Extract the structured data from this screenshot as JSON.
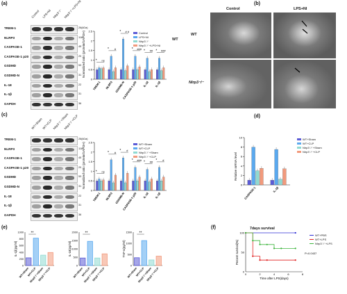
{
  "panels": {
    "a": {
      "letter": "(a)",
      "lanes": [
        "Control",
        "LPS+NI",
        "Nlrp3⁻/⁻",
        "Nlrp3⁻/⁻+LPS+NI"
      ],
      "rows": [
        {
          "name": "TREM-1",
          "kda": "26(kDa)"
        },
        {
          "name": "NLRP3",
          "kda": "118"
        },
        {
          "name": "CASPASE-1",
          "kda": "45"
        },
        {
          "name": "CASPASE-1 p20",
          "kda": "20"
        },
        {
          "name": "GSDMD",
          "kda": "53"
        },
        {
          "name": "GSDMD-N",
          "kda": "31"
        },
        {
          "name": "IL-18",
          "kda": "22"
        },
        {
          "name": "IL-1β",
          "kda": "31"
        },
        {
          "name": "GAPDH",
          "kda": "36"
        }
      ],
      "legend": [
        "Control",
        "LPS+NI",
        "Nlrp3⁻/⁻",
        "Nlrp3⁻/⁻+LPS+NI"
      ],
      "ylabel": "Normalized ratio (protein/GAPDH)",
      "sig": [
        "ns",
        "#",
        "# #",
        "###",
        "##",
        "###"
      ]
    },
    "b": {
      "letter": "(b)",
      "col_labels": [
        "Control",
        "LPS+NI"
      ],
      "row_labels": [
        "WT",
        "Nlrp3⁻/⁻"
      ]
    },
    "c": {
      "letter": "(c)",
      "lanes": [
        "WT+Sham",
        "WT+CLP",
        "Nlrp3⁻/⁻+Sham",
        "Nlrp3⁻/⁻+CLP"
      ],
      "rows": [
        {
          "name": "TREM-1",
          "kda": "26(kDa)"
        },
        {
          "name": "NLRP3",
          "kda": "118"
        },
        {
          "name": "CASPASE-1",
          "kda": "45"
        },
        {
          "name": "CASPASE-1 p20",
          "kda": "20"
        },
        {
          "name": "GSDMD",
          "kda": "53"
        },
        {
          "name": "GSDMD-N",
          "kda": "31"
        },
        {
          "name": "IL-18",
          "kda": "22"
        },
        {
          "name": "IL-1β",
          "kda": "31"
        },
        {
          "name": "GAPDH",
          "kda": "36"
        }
      ],
      "legend": [
        "WT+Sham",
        "WT+CLP",
        "Nlrp3⁻/⁻+Sham",
        "Nlrp3⁻/⁻+CLP"
      ],
      "ylabel": "Normalized ratio (protein/GAPDH)",
      "sig": [
        "ns",
        "#",
        "#",
        "###",
        "##",
        "#"
      ]
    },
    "d": {
      "letter": "(d)",
      "ylabel": "Relative mRNA level",
      "legend": [
        "WT+Sham",
        "WT+CLP",
        "Nlrp3⁻/⁻+Sham",
        "Nlrp3⁻/⁻+CLP"
      ]
    },
    "e": {
      "letter": "(e)"
    },
    "f": {
      "letter": "(f)",
      "title": "7days survival",
      "ylabel": "Percent survival(%)",
      "xlabel": "Time after LPS(days)",
      "legend": [
        "WT+PBS",
        "WT+LPS",
        "Nlrp3⁻/⁻+LPS"
      ],
      "pvalue": "P=0.0437"
    }
  },
  "colors": {
    "c1": "#5b5bd6",
    "c2": "#5aa9ef",
    "c3": "#8fdad1",
    "c4": "#f29a7c"
  },
  "chart_data": [
    {
      "type": "bar",
      "title": "",
      "ylabel": "Normalized ratio (protein/GAPDH)",
      "categories": [
        "TREM-1",
        "NLRP3",
        "GSDMD-N",
        "CASPASE-1 p20",
        "IL-18",
        "IL-1β"
      ],
      "ylim": [
        0,
        2.5
      ],
      "yticks": [
        0,
        0.5,
        1.0,
        1.5,
        2.0,
        2.5
      ],
      "series": [
        {
          "name": "Control",
          "values": [
            0.5,
            0.5,
            0.5,
            0.5,
            0.5,
            0.5
          ]
        },
        {
          "name": "LPS+NI",
          "values": [
            0.6,
            1.2,
            2.1,
            1.2,
            1.1,
            1.1
          ]
        },
        {
          "name": "Nlrp3⁻/⁻",
          "values": [
            0.55,
            0.4,
            0.45,
            0.5,
            0.4,
            0.45
          ]
        },
        {
          "name": "Nlrp3⁻/⁻+LPS+NI",
          "values": [
            0.6,
            0.6,
            0.7,
            0.65,
            0.5,
            0.6
          ]
        }
      ]
    },
    {
      "type": "bar",
      "title": "",
      "ylabel": "Normalized ratio (protein/GAPDH)",
      "categories": [
        "TREM-1",
        "NLRP3",
        "GSDMD-N",
        "CASPASE-1 p20",
        "IL-18",
        "IL-1β"
      ],
      "ylim": [
        0,
        2.5
      ],
      "yticks": [
        0,
        0.5,
        1.0,
        1.5,
        2.0,
        2.5
      ],
      "series": [
        {
          "name": "WT+Sham",
          "values": [
            0.5,
            0.5,
            0.5,
            0.5,
            0.5,
            0.5
          ]
        },
        {
          "name": "WT+CLP",
          "values": [
            0.6,
            1.6,
            1.7,
            1.2,
            1.1,
            1.2
          ]
        },
        {
          "name": "Nlrp3⁻/⁻+Sham",
          "values": [
            0.5,
            0.4,
            0.4,
            0.5,
            0.45,
            0.5
          ]
        },
        {
          "name": "Nlrp3⁻/⁻+CLP",
          "values": [
            0.55,
            0.8,
            0.9,
            0.7,
            0.6,
            0.7
          ]
        }
      ]
    },
    {
      "type": "bar",
      "title": "",
      "ylabel": "Relative mRNA level",
      "categories": [
        "CASPASE-1",
        "IL-1β"
      ],
      "ylim": [
        0,
        10
      ],
      "yticks": [
        0,
        2,
        4,
        6,
        8,
        10
      ],
      "series": [
        {
          "name": "WT+Sham",
          "values": [
            1.0,
            1.0
          ]
        },
        {
          "name": "WT+CLP",
          "values": [
            8.0,
            7.5
          ]
        },
        {
          "name": "Nlrp3⁻/⁻+Sham",
          "values": [
            3.0,
            1.2
          ]
        },
        {
          "name": "Nlrp3⁻/⁻+CLP",
          "values": [
            3.5,
            3.4
          ]
        }
      ]
    },
    {
      "type": "bar",
      "ylabel": "IL-1β(pg/ml)",
      "categories": [
        "WT+Sham",
        "WT+CLP",
        "Nlrp3⁻/⁻+Sham",
        "Nlrp3⁻/⁻+CLP"
      ],
      "ylim": [
        0,
        1000
      ],
      "yticks": [
        0,
        200,
        400,
        600,
        800,
        1000
      ],
      "values": [
        230,
        820,
        310,
        390
      ]
    },
    {
      "type": "bar",
      "ylabel": "IL-18(pg/ml)",
      "categories": [
        "WT+Sham",
        "WT+CLP",
        "Nlrp3⁻/⁻+Sham",
        "Nlrp3⁻/⁻+CLP"
      ],
      "ylim": [
        0,
        2000
      ],
      "yticks": [
        0,
        500,
        1000,
        1500,
        2000
      ],
      "values": [
        450,
        1450,
        450,
        700
      ]
    },
    {
      "type": "bar",
      "ylabel": "TNF-α(pg/ml)",
      "categories": [
        "WT+Sham",
        "WT+CLP",
        "Nlrp3⁻/⁻+Sham",
        "Nlrp3⁻/⁻+CLP"
      ],
      "ylim": [
        0,
        1500
      ],
      "yticks": [
        0,
        500,
        1000,
        1500
      ],
      "values": [
        350,
        1120,
        250,
        420
      ]
    },
    {
      "type": "line",
      "title": "7days survival",
      "xlabel": "Time after LPS(days)",
      "ylabel": "Percent survival(%)",
      "xlim": [
        0,
        8
      ],
      "ylim": [
        0,
        100
      ],
      "xticks": [
        0,
        2,
        4,
        6,
        8
      ],
      "yticks": [
        0,
        50,
        100
      ],
      "series": [
        {
          "name": "WT+PBS",
          "x": [
            0,
            7
          ],
          "y": [
            100,
            100
          ]
        },
        {
          "name": "WT+LPS",
          "x": [
            0,
            1,
            2,
            3,
            7
          ],
          "y": [
            100,
            40,
            30,
            30,
            30
          ]
        },
        {
          "name": "Nlrp3⁻/⁻+LPS",
          "x": [
            0,
            1,
            2,
            3,
            4,
            5,
            7
          ],
          "y": [
            100,
            80,
            70,
            70,
            60,
            60,
            60
          ]
        }
      ]
    }
  ]
}
